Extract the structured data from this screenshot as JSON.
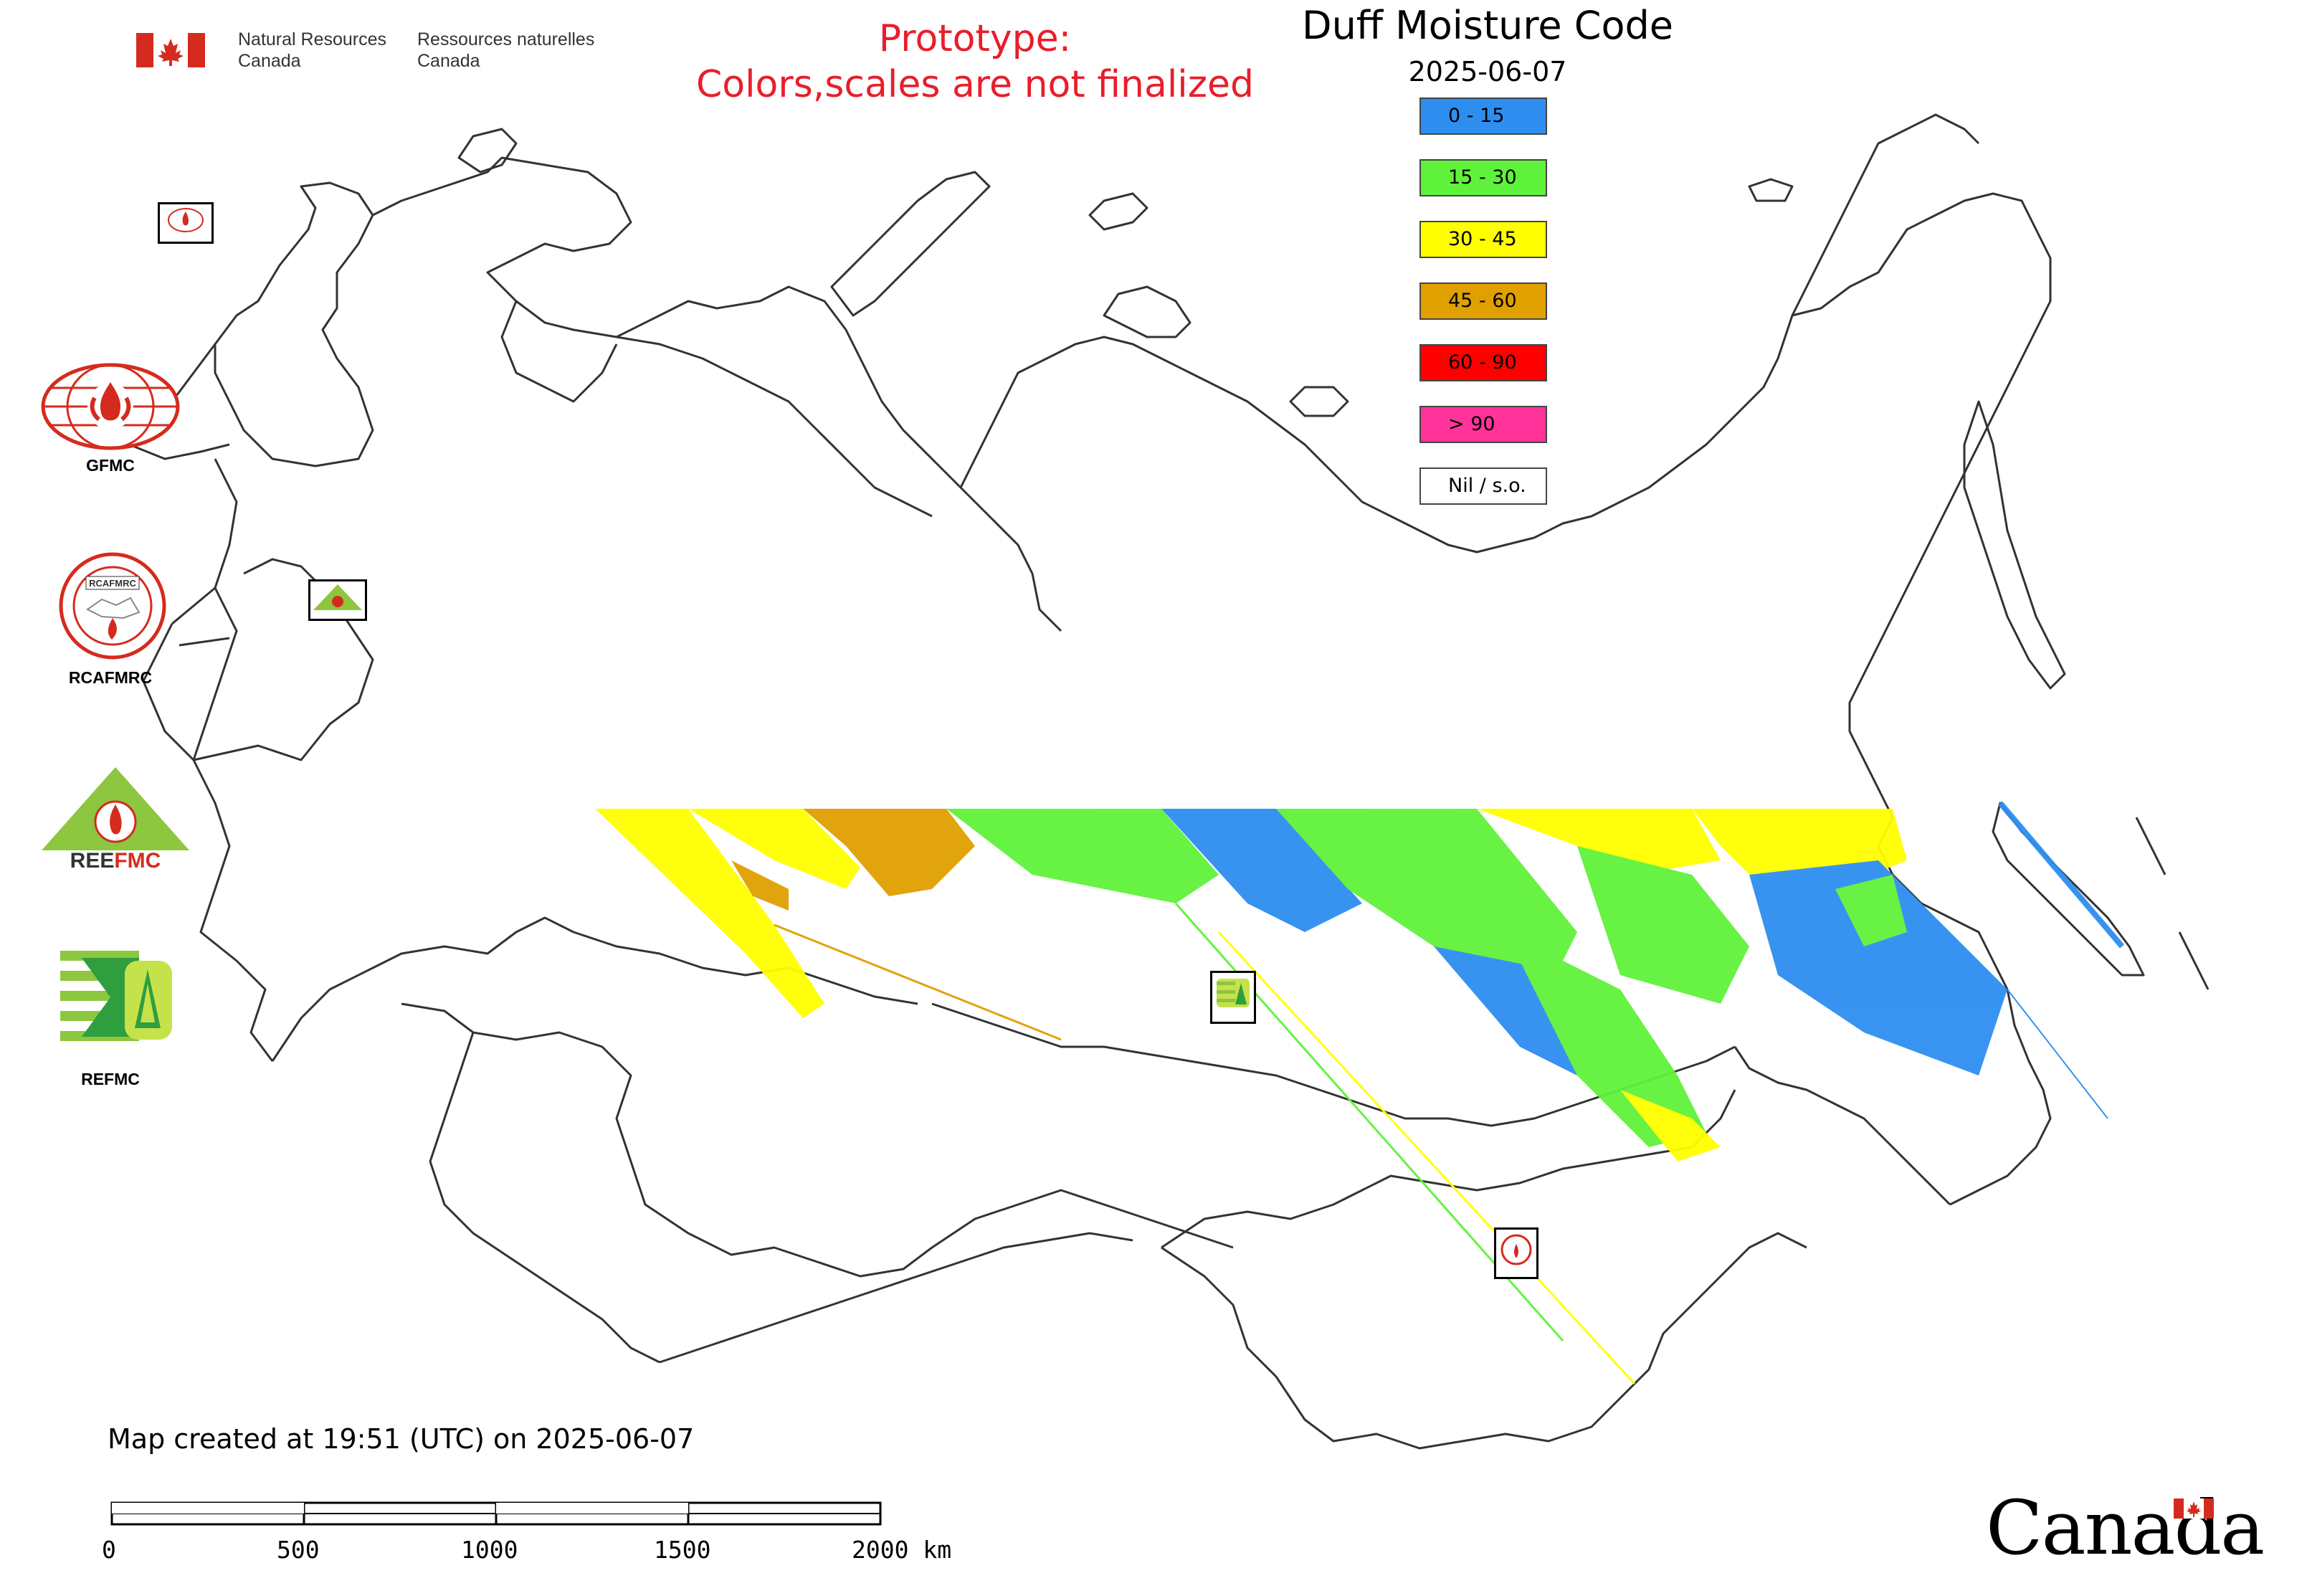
{
  "header": {
    "dept_en_line1": "Natural Resources",
    "dept_en_line2": "Canada",
    "dept_fr_line1": "Ressources naturelles",
    "dept_fr_line2": "Canada"
  },
  "prototype_note": {
    "line1": "Prototype:",
    "line2": "Colors,scales are not finalized"
  },
  "map": {
    "title": "Duff Moisture Code",
    "date": "2025-06-07",
    "created": "Map created at 19:51 (UTC) on 2025-06-07",
    "wordmark": "Canada"
  },
  "legend": [
    {
      "label": "0 - 15",
      "color": "#2e8ef0"
    },
    {
      "label": "15 - 30",
      "color": "#5ff23a"
    },
    {
      "label": "30 - 45",
      "color": "#ffff00"
    },
    {
      "label": "45 - 60",
      "color": "#e0a000"
    },
    {
      "label": "60 - 90",
      "color": "#ff0000"
    },
    {
      "label": "> 90",
      "color": "#ff3399"
    },
    {
      "label": "Nil / s.o.",
      "color": "#ffffff"
    }
  ],
  "organizations": [
    {
      "label": "GFMC",
      "icon": "gfmc-logo-icon"
    },
    {
      "label": "RCAFMRC",
      "icon": "rcafmrc-logo-icon"
    },
    {
      "label": "REEFMC",
      "icon": "reefmc-logo-icon"
    },
    {
      "label": "REFMC",
      "icon": "refmc-logo-icon"
    }
  ],
  "scale_bar": {
    "ticks": [
      "0",
      "500",
      "1000",
      "1500",
      "2000 km"
    ]
  },
  "colors": {
    "prototype_red": "#e81e2b",
    "flag_red": "#d52b1e",
    "border_gray": "#444444"
  }
}
